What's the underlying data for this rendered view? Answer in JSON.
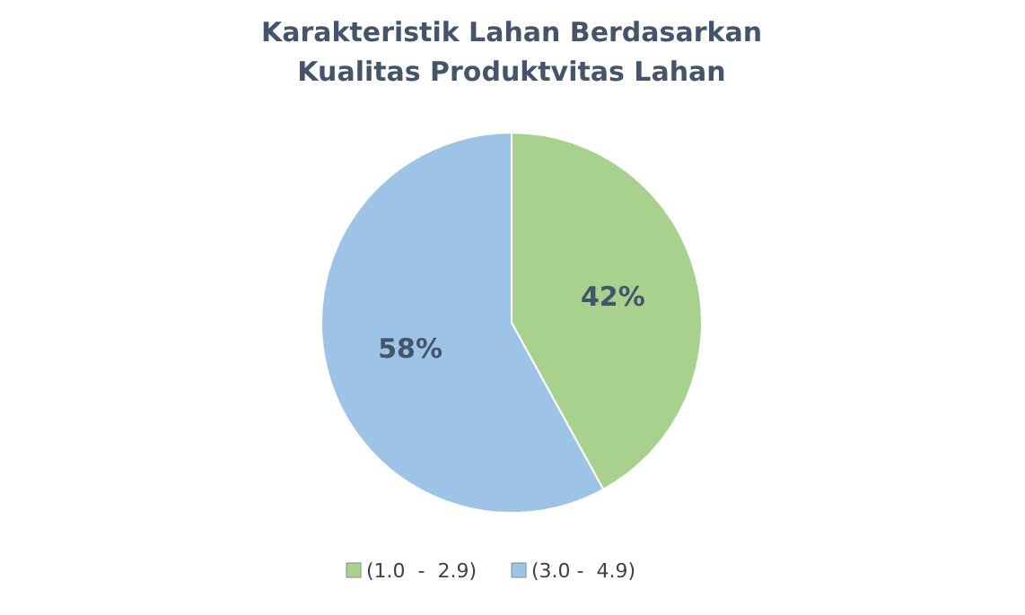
{
  "chart_data": {
    "type": "pie",
    "title": "Karakteristik Lahan Berdasarkan Kualitas Produktvitas Lahan",
    "categories": [
      "(1.0  -  2.9)",
      "(3.0 -  4.9)"
    ],
    "values": [
      42,
      58
    ],
    "colors": [
      "#a9d18e",
      "#9dc3e6"
    ],
    "value_labels": [
      "42%",
      "58%"
    ],
    "legend": "bottom"
  }
}
